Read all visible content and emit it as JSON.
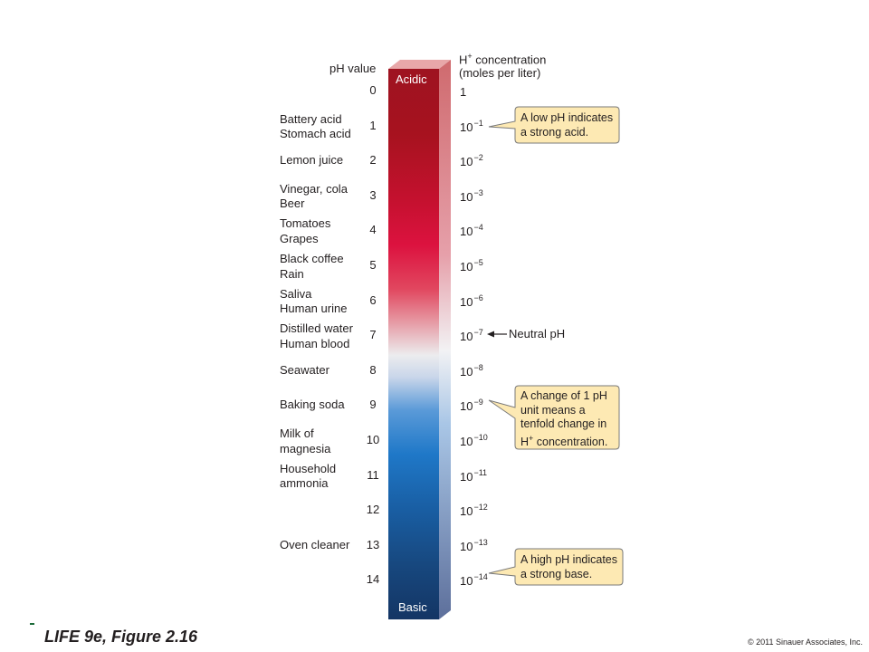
{
  "header": {
    "ph_label": "pH value",
    "conc_line1": "H",
    "conc_sup": "+",
    "conc_line1_rest": " concentration",
    "conc_line2": "(moles per liter)"
  },
  "bar": {
    "top_label": "Acidic",
    "bottom_label": "Basic",
    "colors": {
      "acid_dark": "#a0121e",
      "acid": "#d8123e",
      "neutral": "#e8e8ea",
      "base": "#1f78c8",
      "base_dark": "#153b6b"
    }
  },
  "scale": [
    {
      "ph": "0",
      "substances": [],
      "conc_base": "1",
      "conc_exp": ""
    },
    {
      "ph": "1",
      "substances": [
        "Battery acid",
        "Stomach acid"
      ],
      "conc_base": "10",
      "conc_exp": "−1"
    },
    {
      "ph": "2",
      "substances": [
        "Lemon juice"
      ],
      "conc_base": "10",
      "conc_exp": "−2"
    },
    {
      "ph": "3",
      "substances": [
        "Vinegar, cola",
        "Beer"
      ],
      "conc_base": "10",
      "conc_exp": "−3"
    },
    {
      "ph": "4",
      "substances": [
        "Tomatoes",
        "Grapes"
      ],
      "conc_base": "10",
      "conc_exp": "−4"
    },
    {
      "ph": "5",
      "substances": [
        "Black coffee",
        "Rain"
      ],
      "conc_base": "10",
      "conc_exp": "−5"
    },
    {
      "ph": "6",
      "substances": [
        "Saliva",
        "Human urine"
      ],
      "conc_base": "10",
      "conc_exp": "−6"
    },
    {
      "ph": "7",
      "substances": [
        "Distilled water",
        "Human blood"
      ],
      "conc_base": "10",
      "conc_exp": "−7"
    },
    {
      "ph": "8",
      "substances": [
        "Seawater"
      ],
      "conc_base": "10",
      "conc_exp": "−8"
    },
    {
      "ph": "9",
      "substances": [
        "Baking soda"
      ],
      "conc_base": "10",
      "conc_exp": "−9"
    },
    {
      "ph": "10",
      "substances": [
        "Milk of",
        "magnesia"
      ],
      "conc_base": "10",
      "conc_exp": "−10"
    },
    {
      "ph": "11",
      "substances": [
        "Household",
        "ammonia"
      ],
      "conc_base": "10",
      "conc_exp": "−11"
    },
    {
      "ph": "12",
      "substances": [],
      "conc_base": "10",
      "conc_exp": "−12"
    },
    {
      "ph": "13",
      "substances": [
        "Oven cleaner"
      ],
      "conc_base": "10",
      "conc_exp": "−13"
    },
    {
      "ph": "14",
      "substances": [],
      "conc_base": "10",
      "conc_exp": "−14"
    }
  ],
  "neutral_label": "Neutral pH",
  "callouts": {
    "low": [
      "A low pH indicates",
      "a strong acid."
    ],
    "change": [
      "A change of 1 pH",
      "unit means a",
      "tenfold change in",
      "H",
      "+",
      " concentration."
    ],
    "high": [
      "A high pH indicates",
      "a strong base."
    ],
    "fill": "#fde9b3",
    "stroke": "#7a7a7a"
  },
  "footer": {
    "title": "LIFE 9e, Figure 2.16",
    "copyright": "© 2011 Sinauer Associates, Inc."
  }
}
